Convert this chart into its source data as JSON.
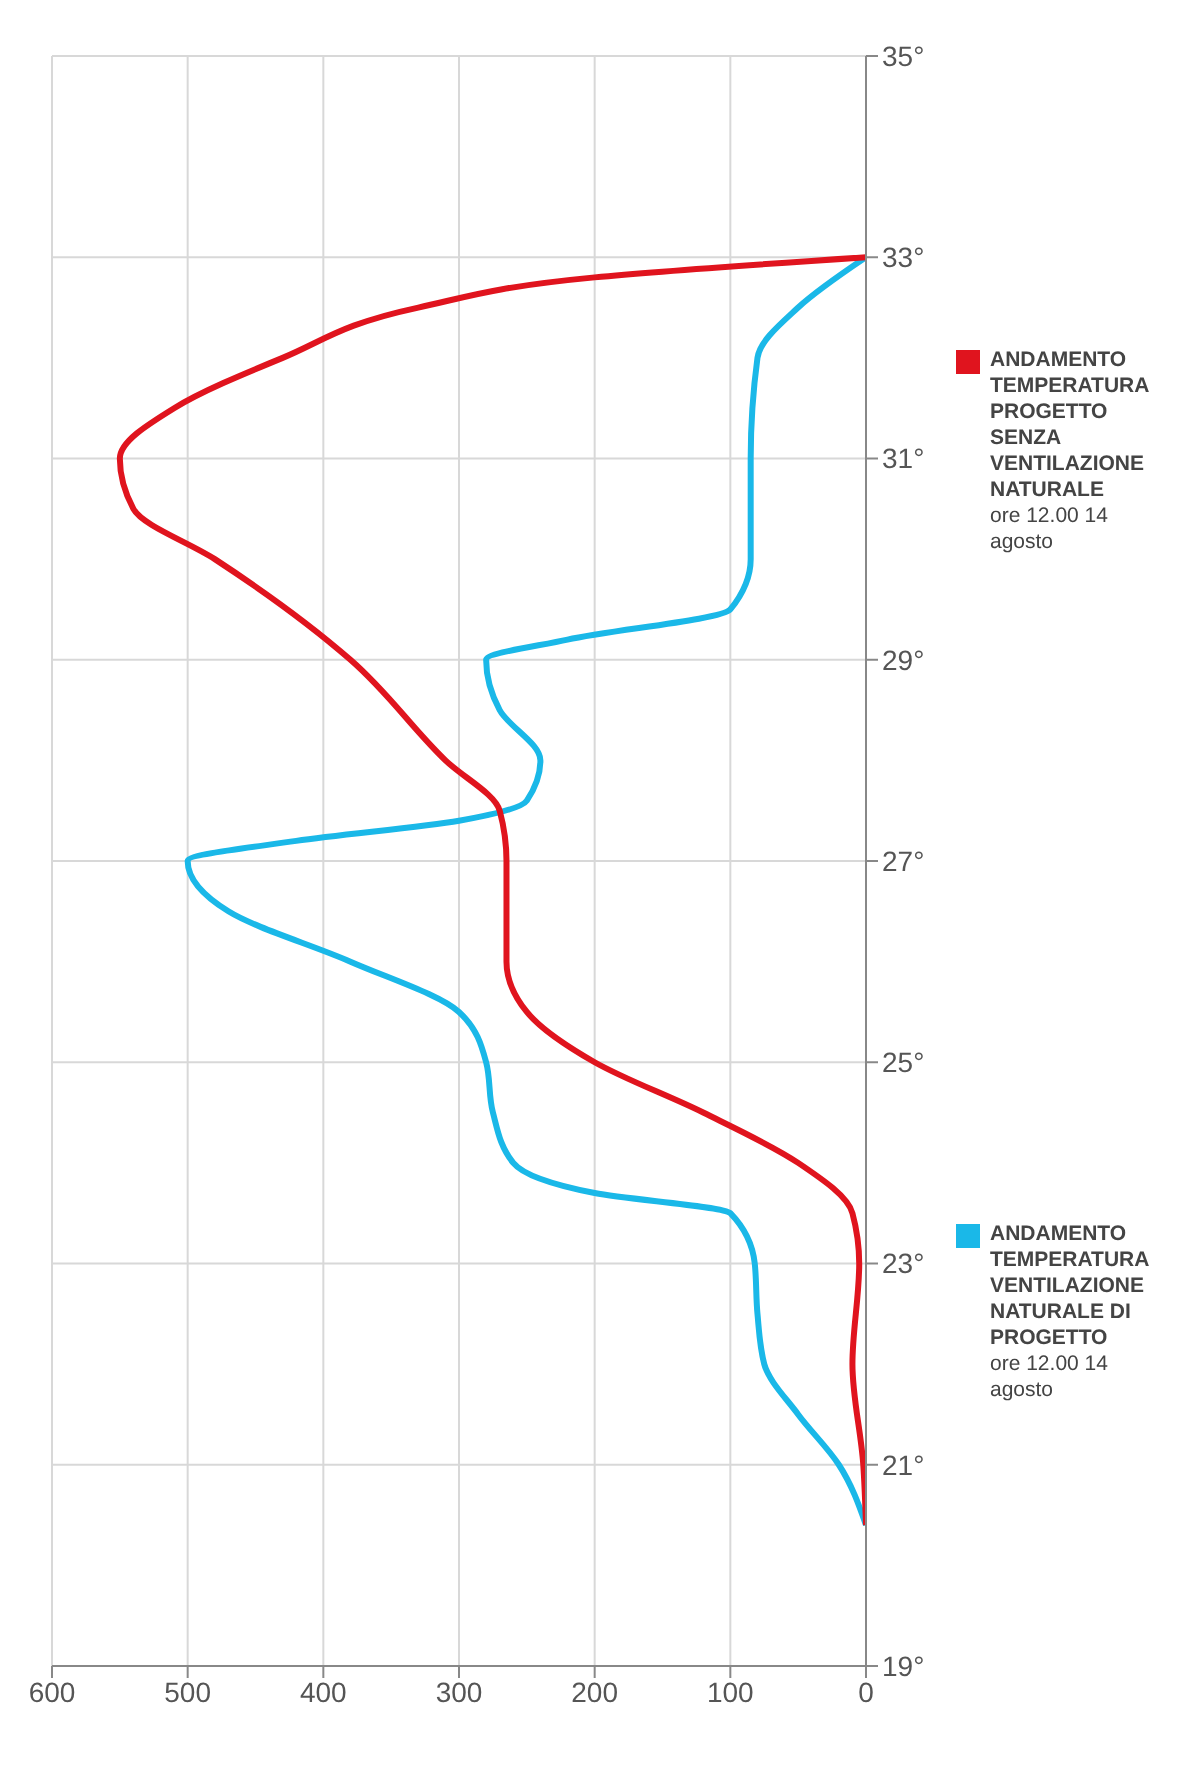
{
  "chart_data": {
    "type": "line",
    "xlim": [
      600,
      0
    ],
    "xticks": [
      0,
      100,
      200,
      300,
      400,
      500,
      600
    ],
    "ylim": [
      19,
      35
    ],
    "yticks": [
      {
        "value": 19,
        "label": "19°"
      },
      {
        "value": 21,
        "label": "21°"
      },
      {
        "value": 23,
        "label": "23°"
      },
      {
        "value": 25,
        "label": "25°"
      },
      {
        "value": 27,
        "label": "27°"
      },
      {
        "value": 29,
        "label": "29°"
      },
      {
        "value": 31,
        "label": "31°"
      },
      {
        "value": 33,
        "label": "33°"
      },
      {
        "value": 35,
        "label": "35°"
      }
    ],
    "grid": true,
    "legend": "right",
    "marker": "none",
    "line_style": "solid",
    "series": [
      {
        "name": "ANDAMENTO TEMPERATURA\nVENTILAZIONE NATURALE DI PROGETTO\nore 12.00 14 agosto",
        "color": "#1ab8e8",
        "values": [
          20.4,
          21,
          21.5,
          22,
          22.5,
          23,
          23.5,
          23.7,
          24,
          24.5,
          25,
          25.5,
          26,
          26.5,
          27,
          27.2,
          27.4,
          27.6,
          28,
          28.5,
          29,
          29.2,
          29.5,
          30,
          31,
          32,
          32.5,
          33
        ],
        "x": [
          0,
          20,
          50,
          75,
          80,
          82,
          100,
          200,
          260,
          275,
          280,
          300,
          380,
          470,
          500,
          420,
          300,
          250,
          240,
          270,
          280,
          220,
          100,
          85,
          85,
          80,
          50,
          0
        ]
      },
      {
        "name": "ANDAMENTO TEMPERATURA\nPROGETTO SENZA VENTILAZIONE NATURALE\nore 12.00 14 agosto",
        "color": "#e0141e",
        "values": [
          20.4,
          21,
          22,
          23,
          23.5,
          24,
          24.5,
          25,
          25.5,
          26,
          27,
          27.5,
          28,
          29,
          30,
          30.5,
          31,
          31.5,
          32,
          32.5,
          32.8,
          33
        ],
        "x": [
          0,
          2,
          10,
          5,
          10,
          50,
          120,
          200,
          250,
          265,
          265,
          270,
          310,
          380,
          480,
          540,
          550,
          510,
          430,
          330,
          200,
          0
        ]
      }
    ]
  }
}
